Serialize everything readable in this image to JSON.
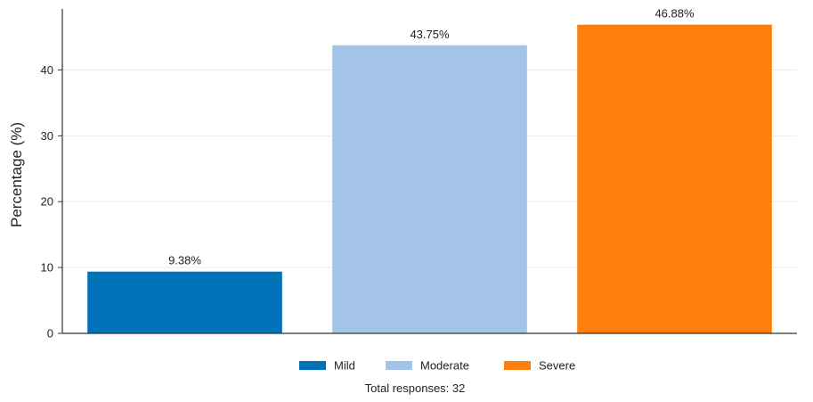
{
  "chart_data": {
    "type": "bar",
    "title": "",
    "xlabel": "",
    "ylabel": "Percentage (%)",
    "ylim": [
      0,
      49
    ],
    "yticks": [
      0,
      10,
      20,
      30,
      40
    ],
    "grid": "horizontal",
    "legend_position": "bottom",
    "footer": "Total responses: 32",
    "categories": [
      "Mild",
      "Moderate",
      "Severe"
    ],
    "values": [
      9.38,
      43.75,
      46.88
    ],
    "labels": [
      "9.38%",
      "43.75%",
      "46.88%"
    ],
    "colors": [
      "#0072b8",
      "#a3c4e8",
      "#ff7f0e"
    ],
    "legend": [
      "Mild",
      "Moderate",
      "Severe"
    ]
  }
}
